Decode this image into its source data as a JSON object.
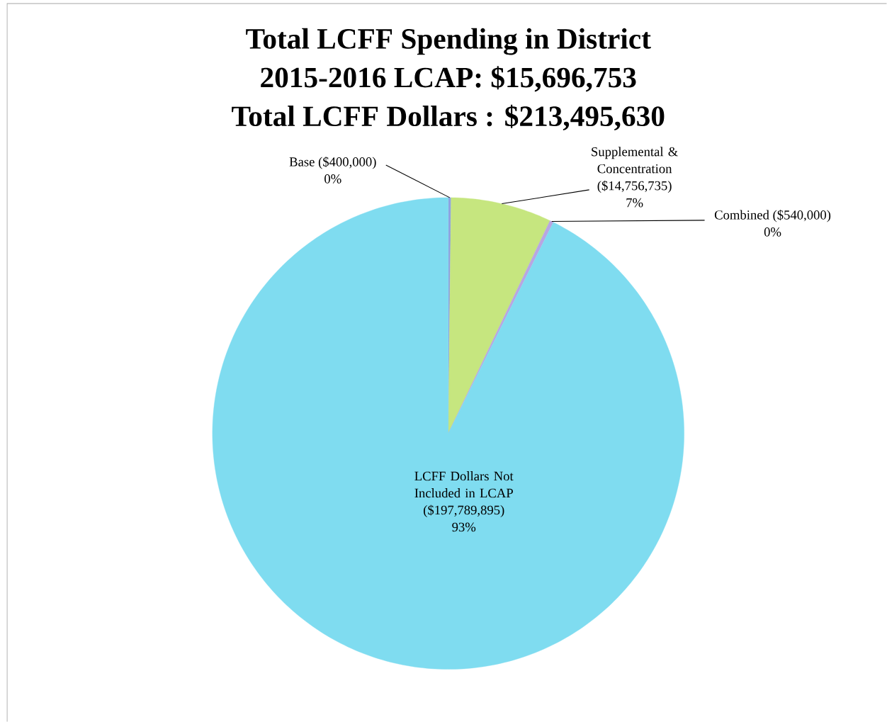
{
  "chart_data": {
    "type": "pie",
    "title": "Total LCFF Spending in District",
    "subtitle": "2015-2016 LCAP: $15,696,753",
    "annotations": [
      "Total LCFF Dollars : $213,495,630"
    ],
    "categories": [
      "Base ($400,000)",
      "Supplemental & Concentration ($14,756,735)",
      "Combined ($540,000)",
      "LCFF Dollars Not Included in LCAP ($197,789,895)"
    ],
    "values": [
      0.19,
      6.91,
      0.25,
      92.65
    ],
    "value_labels": [
      "0%",
      "7%",
      "0%",
      "93%"
    ],
    "colors": [
      "#8fa3e0",
      "#c6e67f",
      "#b8a6e2",
      "#7fdcf0"
    ]
  }
}
